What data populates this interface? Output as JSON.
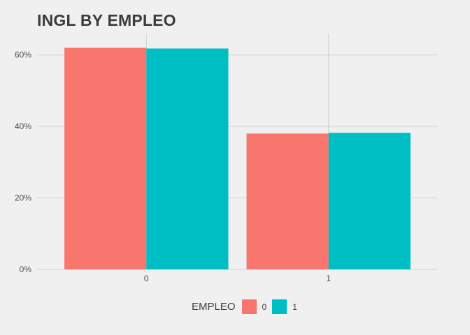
{
  "chart_data": {
    "type": "bar",
    "title": "INGL BY EMPLEO",
    "xlabel": "",
    "ylabel": "",
    "categories": [
      "0",
      "1"
    ],
    "series": [
      {
        "name": "0",
        "color": "#F8766D",
        "values": [
          0.62,
          0.38
        ]
      },
      {
        "name": "1",
        "color": "#00BFC4",
        "values": [
          0.618,
          0.382
        ]
      }
    ],
    "ylim": [
      0,
      0.66
    ],
    "yticks": [
      0,
      0.2,
      0.4,
      0.6
    ],
    "ytick_labels": [
      "0%",
      "20%",
      "40%",
      "60%"
    ],
    "grid": true,
    "legend": {
      "title": "EMPLEO",
      "position": "bottom",
      "labels": [
        "0",
        "1"
      ]
    }
  }
}
